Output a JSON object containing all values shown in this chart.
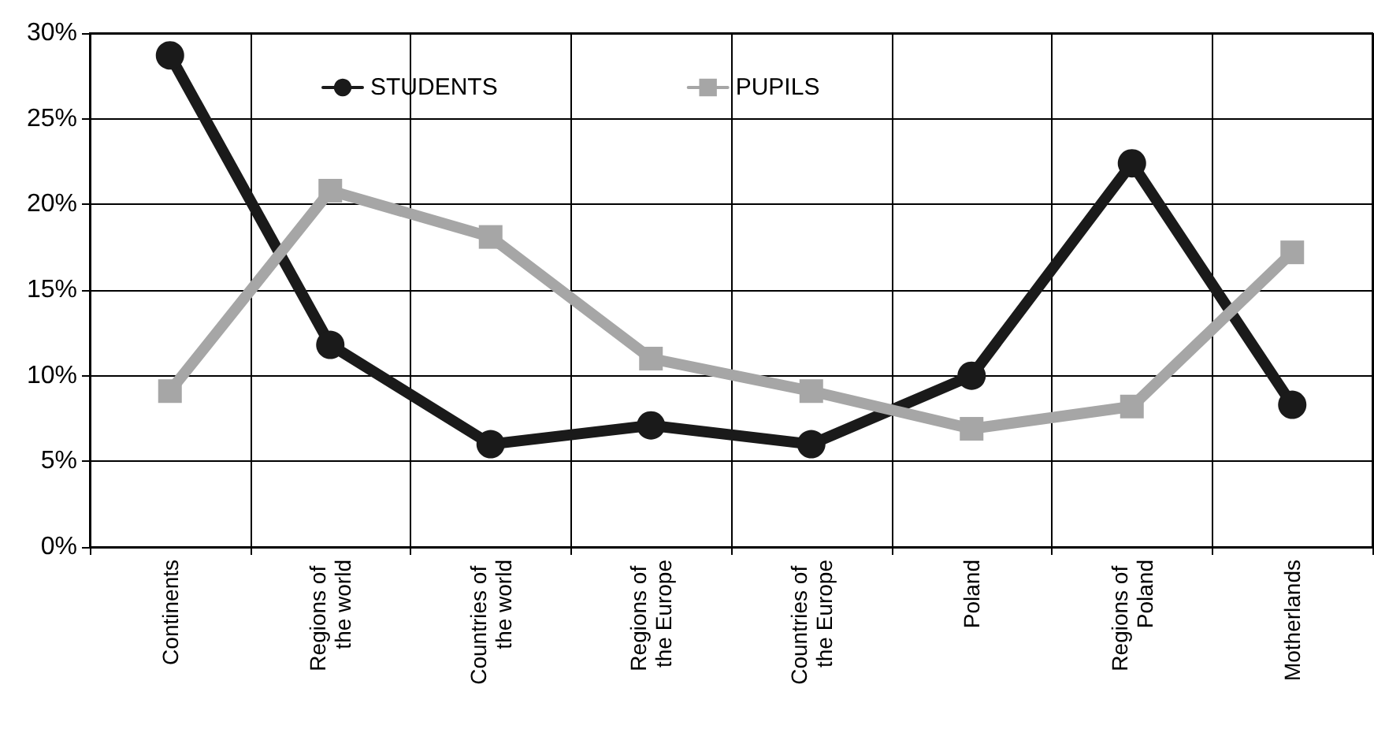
{
  "chart_data": {
    "type": "line",
    "categories": [
      "Continents",
      "Regions of the world",
      "Countries of the world",
      "Regions of the Europe",
      "Countries of the Europe",
      "Poland",
      "Regions of Poland",
      "Motherlands"
    ],
    "series": [
      {
        "name": "STUDENTS",
        "color": "#1a1a1a",
        "marker": "circle",
        "values": [
          28.7,
          11.8,
          6.0,
          7.1,
          6.0,
          10.0,
          22.4,
          8.3
        ]
      },
      {
        "name": "PUPILS",
        "color": "#a6a6a6",
        "marker": "square",
        "values": [
          9.1,
          20.8,
          18.1,
          11.0,
          9.1,
          6.9,
          8.2,
          17.2
        ]
      }
    ],
    "ylim": [
      0,
      30
    ],
    "yticks": [
      {
        "value": 0,
        "label": "0%"
      },
      {
        "value": 5,
        "label": "5%"
      },
      {
        "value": 10,
        "label": "10%"
      },
      {
        "value": 15,
        "label": "15%"
      },
      {
        "value": 20,
        "label": "20%"
      },
      {
        "value": 25,
        "label": "25%"
      },
      {
        "value": 30,
        "label": "30%"
      }
    ],
    "grid": true,
    "legend": "top",
    "line_style": "solid"
  }
}
